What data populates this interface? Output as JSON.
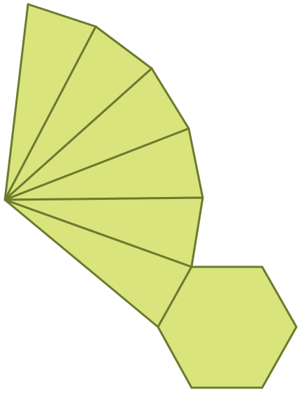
{
  "figure": {
    "kind": "pyramid-net",
    "fill": "#d9e47c",
    "stroke": "#6b7a2e",
    "base": "hexagon",
    "lateral_faces": 6
  }
}
